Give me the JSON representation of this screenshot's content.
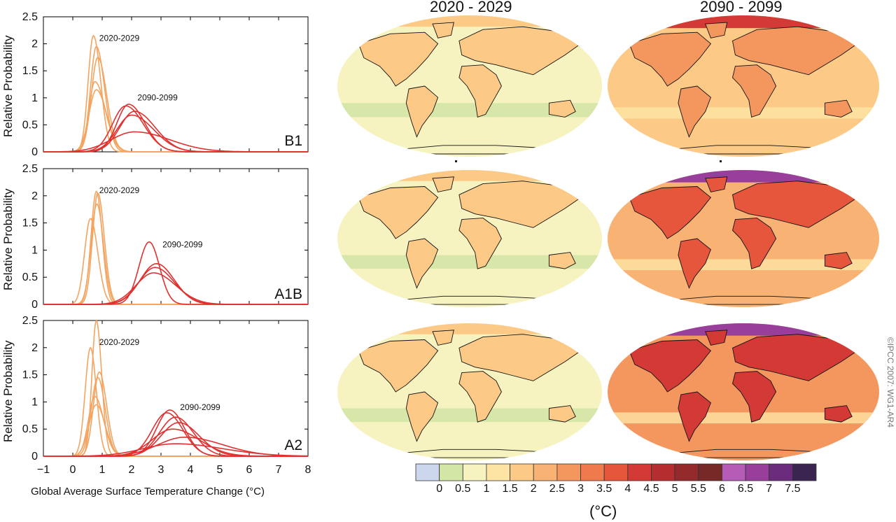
{
  "credit": "©IPCC 2007: WG1-AR4",
  "map_titles": [
    "2020 - 2029",
    "2090 - 2099"
  ],
  "colorbar": {
    "colors": [
      "#ccd7ee",
      "#d4e6a6",
      "#f6f3c0",
      "#fde3a4",
      "#fcca86",
      "#f8b274",
      "#f4975f",
      "#ef7a4e",
      "#e5563d",
      "#d33a36",
      "#b62d30",
      "#952a2c",
      "#772927",
      "#b45cb6",
      "#983f9c",
      "#6c2c7e",
      "#3c2450"
    ],
    "tick_labels": [
      "0",
      "0.5",
      "1",
      "1.5",
      "2",
      "2.5",
      "3",
      "3.5",
      "4",
      "4.5",
      "5",
      "5.5",
      "6",
      "6.5",
      "7",
      "7.5"
    ],
    "unit": "(°C)"
  },
  "maps": [
    {
      "name": "B1",
      "near_base": "#f6f3c0",
      "far_base": "#fcca86",
      "far_land": "#f4975f",
      "far_arctic": "#d33a36"
    },
    {
      "name": "A1B",
      "near_base": "#f6f3c0",
      "far_base": "#f8b274",
      "far_land": "#e5563d",
      "far_arctic": "#983f9c"
    },
    {
      "name": "A2",
      "near_base": "#f6f3c0",
      "far_base": "#f4975f",
      "far_land": "#d33a36",
      "far_arctic": "#983f9c"
    }
  ],
  "chart_data": [
    {
      "type": "line",
      "scenario_label": "B1",
      "ylabel": "Relative Probability",
      "xlim": [
        -1,
        8
      ],
      "ylim": [
        0,
        2.5
      ],
      "yticks": [
        "0",
        "0.5",
        "1",
        "1.5",
        "2",
        "2.5"
      ],
      "annotations": [
        "2020-2029",
        "2090-2099"
      ],
      "series": [
        {
          "period": "2020-2029",
          "color": "#f4a460",
          "peak_x": 0.7,
          "peak_y": 2.15,
          "spread_left": 0.18,
          "spread_right": 0.25
        },
        {
          "period": "2020-2029",
          "color": "#f4a460",
          "peak_x": 0.8,
          "peak_y": 1.95,
          "spread_left": 0.2,
          "spread_right": 0.28
        },
        {
          "period": "2020-2029",
          "color": "#f4a460",
          "peak_x": 0.85,
          "peak_y": 1.75,
          "spread_left": 0.22,
          "spread_right": 0.3
        },
        {
          "period": "2020-2029",
          "color": "#f4a460",
          "peak_x": 0.75,
          "peak_y": 1.3,
          "spread_left": 0.2,
          "spread_right": 0.35
        },
        {
          "period": "2020-2029",
          "color": "#f4a460",
          "peak_x": 0.8,
          "peak_y": 1.15,
          "spread_left": 0.25,
          "spread_right": 0.35
        },
        {
          "period": "2090-2099",
          "color": "#e03030",
          "peak_x": 1.9,
          "peak_y": 0.88,
          "spread_left": 0.4,
          "spread_right": 0.55
        },
        {
          "period": "2090-2099",
          "color": "#e03030",
          "peak_x": 1.8,
          "peak_y": 0.85,
          "spread_left": 0.45,
          "spread_right": 0.6
        },
        {
          "period": "2090-2099",
          "color": "#e03030",
          "peak_x": 2.1,
          "peak_y": 0.75,
          "spread_left": 0.5,
          "spread_right": 0.7
        },
        {
          "period": "2090-2099",
          "color": "#e03030",
          "peak_x": 2.0,
          "peak_y": 0.68,
          "spread_left": 0.5,
          "spread_right": 0.75
        },
        {
          "period": "2090-2099",
          "color": "#e03030",
          "peak_x": 2.1,
          "peak_y": 0.37,
          "spread_left": 0.8,
          "spread_right": 1.2
        }
      ]
    },
    {
      "type": "line",
      "scenario_label": "A1B",
      "ylabel": "Relative Probability",
      "xlim": [
        -1,
        8
      ],
      "ylim": [
        0,
        2.5
      ],
      "yticks": [
        "0",
        "0.5",
        "1",
        "1.5",
        "2",
        "2.5"
      ],
      "annotations": [
        "2020-2029",
        "2090-2099"
      ],
      "series": [
        {
          "period": "2020-2029",
          "color": "#f4a460",
          "peak_x": 0.8,
          "peak_y": 2.08,
          "spread_left": 0.18,
          "spread_right": 0.2
        },
        {
          "period": "2020-2029",
          "color": "#f4a460",
          "peak_x": 0.85,
          "peak_y": 2.05,
          "spread_left": 0.18,
          "spread_right": 0.22
        },
        {
          "period": "2020-2029",
          "color": "#f4a460",
          "peak_x": 0.82,
          "peak_y": 1.85,
          "spread_left": 0.2,
          "spread_right": 0.22
        },
        {
          "period": "2020-2029",
          "color": "#f4a460",
          "peak_x": 0.6,
          "peak_y": 1.58,
          "spread_left": 0.2,
          "spread_right": 0.25
        },
        {
          "period": "2090-2099",
          "color": "#e03030",
          "peak_x": 2.6,
          "peak_y": 1.15,
          "spread_left": 0.35,
          "spread_right": 0.35
        },
        {
          "period": "2090-2099",
          "color": "#e03030",
          "peak_x": 2.85,
          "peak_y": 0.75,
          "spread_left": 0.55,
          "spread_right": 0.6
        },
        {
          "period": "2090-2099",
          "color": "#e03030",
          "peak_x": 2.8,
          "peak_y": 0.68,
          "spread_left": 0.55,
          "spread_right": 0.65
        },
        {
          "period": "2090-2099",
          "color": "#e03030",
          "peak_x": 2.75,
          "peak_y": 0.58,
          "spread_left": 0.6,
          "spread_right": 0.75
        }
      ]
    },
    {
      "type": "line",
      "scenario_label": "A2",
      "ylabel": "Relative Probability",
      "xlabel": "Global Average Surface Temperature Change (°C)",
      "xlim": [
        -1,
        8
      ],
      "ylim": [
        0,
        2.5
      ],
      "xticks": [
        "−1",
        "0",
        "1",
        "2",
        "3",
        "4",
        "5",
        "6",
        "7",
        "8"
      ],
      "yticks": [
        "0",
        "0.5",
        "1",
        "1.5",
        "2",
        "2.5"
      ],
      "annotations": [
        "2020-2029",
        "2090-2099"
      ],
      "series": [
        {
          "period": "2020-2029",
          "color": "#f4a460",
          "peak_x": 0.8,
          "peak_y": 2.5,
          "spread_left": 0.15,
          "spread_right": 0.18
        },
        {
          "period": "2020-2029",
          "color": "#f4a460",
          "peak_x": 0.6,
          "peak_y": 2.0,
          "spread_left": 0.18,
          "spread_right": 0.2
        },
        {
          "period": "2020-2029",
          "color": "#f4a460",
          "peak_x": 0.9,
          "peak_y": 1.55,
          "spread_left": 0.2,
          "spread_right": 0.25
        },
        {
          "period": "2020-2029",
          "color": "#f4a460",
          "peak_x": 0.85,
          "peak_y": 1.45,
          "spread_left": 0.22,
          "spread_right": 0.25
        },
        {
          "period": "2020-2029",
          "color": "#f4a460",
          "peak_x": 0.75,
          "peak_y": 1.1,
          "spread_left": 0.22,
          "spread_right": 0.3
        },
        {
          "period": "2020-2029",
          "color": "#f4a460",
          "peak_x": 0.8,
          "peak_y": 0.95,
          "spread_left": 0.25,
          "spread_right": 0.3
        },
        {
          "period": "2090-2099",
          "color": "#e03030",
          "peak_x": 3.3,
          "peak_y": 0.85,
          "spread_left": 0.45,
          "spread_right": 0.5
        },
        {
          "period": "2090-2099",
          "color": "#e03030",
          "peak_x": 3.2,
          "peak_y": 0.8,
          "spread_left": 0.5,
          "spread_right": 0.55
        },
        {
          "period": "2090-2099",
          "color": "#e03030",
          "peak_x": 3.5,
          "peak_y": 0.72,
          "spread_left": 0.55,
          "spread_right": 0.6
        },
        {
          "period": "2090-2099",
          "color": "#e03030",
          "peak_x": 3.6,
          "peak_y": 0.62,
          "spread_left": 0.6,
          "spread_right": 0.7
        },
        {
          "period": "2090-2099",
          "color": "#e03030",
          "peak_x": 3.4,
          "peak_y": 0.5,
          "spread_left": 0.7,
          "spread_right": 0.9
        },
        {
          "period": "2090-2099",
          "color": "#e03030",
          "peak_x": 3.8,
          "peak_y": 0.35,
          "spread_left": 0.9,
          "spread_right": 1.3
        },
        {
          "period": "2090-2099",
          "color": "#e03030",
          "peak_x": 3.5,
          "peak_y": 0.23,
          "spread_left": 1.1,
          "spread_right": 1.6
        }
      ]
    }
  ]
}
